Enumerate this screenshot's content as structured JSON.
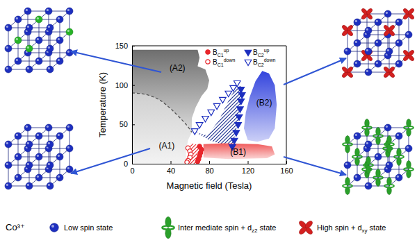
{
  "chart_data": {
    "type": "scatter",
    "x_label": "Magnetic field (Tesla)",
    "y_label": "Temperature (K)",
    "xlim": [
      0,
      160
    ],
    "ylim": [
      0,
      150
    ],
    "xticks": [
      0,
      40,
      80,
      120,
      160
    ],
    "yticks": [
      0,
      50,
      100,
      150
    ],
    "legend": "upper right",
    "series": [
      {
        "name": "BC1up",
        "color": "#e8262b",
        "marker": "circle",
        "x": [
          70,
          72,
          71,
          70,
          69,
          68
        ],
        "values": [
          22,
          18,
          14,
          10,
          6,
          3
        ]
      },
      {
        "name": "BC1down",
        "color": "#e8262b",
        "marker": "circle-open",
        "x": [
          58,
          60,
          61,
          60,
          58,
          57
        ],
        "values": [
          20,
          16,
          12,
          8,
          4,
          2
        ]
      },
      {
        "name": "BC2up",
        "color": "#1d2fbf",
        "marker": "triangle-down",
        "x": [
          113,
          114,
          113,
          112,
          111,
          110,
          108,
          106,
          104
        ],
        "values": [
          95,
          88,
          80,
          70,
          60,
          50,
          40,
          30,
          22
        ]
      },
      {
        "name": "BC2down",
        "color": "#1d2fbf",
        "marker": "triangle-down-open",
        "x": [
          65,
          70,
          76,
          82,
          88,
          94,
          100,
          105,
          109
        ],
        "values": [
          42,
          50,
          58,
          66,
          74,
          82,
          90,
          97,
          103
        ]
      }
    ],
    "regions": [
      {
        "type": "area",
        "color": "#cfcfcf",
        "x": [
          0,
          10,
          20,
          30,
          40,
          50,
          58,
          62,
          58,
          56,
          56,
          0
        ],
        "values": [
          90,
          89,
          86,
          80,
          70,
          58,
          47,
          40,
          30,
          15,
          0,
          0
        ]
      },
      {
        "type": "area",
        "color": "#6e6e6e",
        "x": [
          0,
          68,
          70,
          68,
          76,
          80,
          78,
          72,
          66,
          62,
          62,
          58,
          50,
          40,
          30,
          20,
          10,
          0
        ],
        "values": [
          145,
          145,
          135,
          124,
          120,
          106,
          95,
          86,
          72,
          58,
          40,
          47,
          58,
          70,
          80,
          86,
          89,
          90
        ]
      },
      {
        "type": "hatch",
        "color": "#1d2f8f",
        "x": [
          66,
          78,
          90,
          100,
          109,
          114,
          113,
          110,
          106,
          103,
          95,
          80
        ],
        "values": [
          40,
          36,
          55,
          80,
          100,
          98,
          80,
          55,
          32,
          22,
          24,
          30
        ]
      },
      {
        "type": "hatch",
        "color": "#e8262b",
        "x": [
          57,
          58,
          61,
          68,
          71,
          70,
          68,
          60
        ],
        "values": [
          0,
          20,
          26,
          24,
          18,
          8,
          0,
          0
        ]
      },
      {
        "type": "area",
        "color": "#3344dd",
        "x": [
          120,
          116,
          118,
          122,
          128,
          135,
          142,
          148,
          150,
          148,
          142,
          130
        ],
        "values": [
          30,
          45,
          65,
          85,
          105,
          118,
          115,
          100,
          75,
          45,
          32,
          28
        ]
      },
      {
        "type": "area",
        "color": "#f05a5a",
        "x": [
          74,
          74,
          95,
          130,
          145,
          148,
          140,
          100
        ],
        "values": [
          8,
          25,
          26,
          25,
          22,
          12,
          7,
          6
        ]
      }
    ],
    "boundaries": [
      {
        "color": "#555555",
        "line_style": "dashed",
        "x": [
          0,
          10,
          20,
          30,
          40,
          50,
          58,
          62
        ],
        "values": [
          90,
          89,
          86,
          80,
          70,
          58,
          47,
          40
        ]
      }
    ],
    "annotations": [
      {
        "text": "(A2)",
        "x": 47,
        "y": 122
      },
      {
        "text": "(A1)",
        "x": 36,
        "y": 23
      },
      {
        "text": "(B2)",
        "x": 137,
        "y": 78
      },
      {
        "text": "(B1)",
        "x": 110,
        "y": 15
      }
    ]
  },
  "lattices": [
    {
      "marker": "sphere",
      "color": "#27b327",
      "sites": [
        [
          1,
          1,
          0
        ],
        [
          0,
          1,
          1
        ],
        [
          2,
          1,
          2
        ],
        [
          1,
          2,
          1
        ]
      ]
    },
    {
      "marker": "sphere",
      "color": "#27b327",
      "sites": []
    },
    {
      "marker": "clover",
      "color": "#d42020",
      "sites": [
        [
          0,
          0,
          0
        ],
        [
          2,
          0,
          0
        ],
        [
          0,
          2,
          0
        ],
        [
          2,
          2,
          0
        ],
        [
          0,
          0,
          2
        ],
        [
          2,
          0,
          2
        ],
        [
          0,
          2,
          2
        ],
        [
          2,
          2,
          2
        ]
      ]
    },
    {
      "marker": "dumbbell",
      "color": "#2aa02a",
      "sites": [
        [
          0,
          0,
          0
        ],
        [
          2,
          0,
          0
        ],
        [
          0,
          2,
          0
        ],
        [
          2,
          2,
          0
        ],
        [
          0,
          0,
          2
        ],
        [
          2,
          0,
          2
        ],
        [
          0,
          2,
          2
        ],
        [
          2,
          2,
          2
        ],
        [
          1,
          1,
          0
        ],
        [
          1,
          1,
          2
        ],
        [
          1,
          0,
          1
        ],
        [
          1,
          2,
          1
        ],
        [
          0,
          1,
          1
        ],
        [
          2,
          1,
          1
        ]
      ]
    }
  ],
  "key": {
    "title": "Co³⁺",
    "entries": [
      {
        "label": "Low spin state",
        "marker": "sphere",
        "color": "#1d2fbf"
      },
      {
        "label": "Inter mediate spin + d",
        "sub": "z2",
        "suffix": " state",
        "marker": "dumbbell",
        "color": "#2aa02a"
      },
      {
        "label": "High spin + d",
        "sub": "xy",
        "suffix": " state",
        "marker": "clover",
        "color": "#d42020"
      }
    ]
  }
}
